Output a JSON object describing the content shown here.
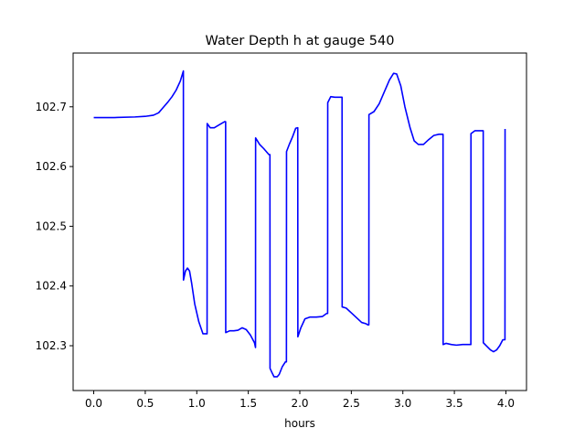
{
  "chart_data": {
    "type": "line",
    "title": "Water Depth h at gauge 540",
    "xlabel": "hours",
    "ylabel": "",
    "xlim": [
      -0.2,
      4.2
    ],
    "ylim": [
      102.225,
      102.79
    ],
    "x_ticks": [
      0.0,
      0.5,
      1.0,
      1.5,
      2.0,
      2.5,
      3.0,
      3.5,
      4.0
    ],
    "x_tick_labels": [
      "0.0",
      "0.5",
      "1.0",
      "1.5",
      "2.0",
      "2.5",
      "3.0",
      "3.5",
      "4.0"
    ],
    "y_ticks": [
      102.3,
      102.4,
      102.5,
      102.6,
      102.7
    ],
    "y_tick_labels": [
      "102.3",
      "102.4",
      "102.5",
      "102.6",
      "102.7"
    ],
    "grid": false,
    "legend": "none",
    "series": [
      {
        "color": "#0000ff",
        "x": [
          0.0,
          0.2,
          0.4,
          0.5,
          0.58,
          0.63,
          0.68,
          0.72,
          0.76,
          0.8,
          0.84,
          0.87,
          0.871,
          0.89,
          0.91,
          0.93,
          0.95,
          0.98,
          1.02,
          1.06,
          1.1,
          1.101,
          1.13,
          1.17,
          1.22,
          1.27,
          1.28,
          1.281,
          1.32,
          1.36,
          1.4,
          1.44,
          1.48,
          1.52,
          1.56,
          1.57,
          1.571,
          1.61,
          1.65,
          1.7,
          1.71,
          1.711,
          1.73,
          1.75,
          1.78,
          1.8,
          1.83,
          1.86,
          1.87,
          1.871,
          1.9,
          1.93,
          1.96,
          1.98,
          1.981,
          2.01,
          2.05,
          2.1,
          2.16,
          2.22,
          2.26,
          2.27,
          2.271,
          2.3,
          2.34,
          2.4,
          2.41,
          2.411,
          2.45,
          2.5,
          2.55,
          2.6,
          2.64,
          2.66,
          2.67,
          2.671,
          2.72,
          2.77,
          2.82,
          2.87,
          2.91,
          2.94,
          2.98,
          3.02,
          3.07,
          3.11,
          3.15,
          3.2,
          3.25,
          3.3,
          3.35,
          3.38,
          3.39,
          3.391,
          3.42,
          3.47,
          3.52,
          3.58,
          3.64,
          3.66,
          3.661,
          3.7,
          3.75,
          3.78,
          3.781,
          3.81,
          3.85,
          3.88,
          3.91,
          3.94,
          3.97,
          3.99,
          3.991,
          3.992
        ],
        "y": [
          102.682,
          102.682,
          102.683,
          102.684,
          102.686,
          102.69,
          102.7,
          102.708,
          102.717,
          102.728,
          102.743,
          102.76,
          102.41,
          102.425,
          102.43,
          102.425,
          102.405,
          102.37,
          102.34,
          102.32,
          102.32,
          102.672,
          102.665,
          102.665,
          102.67,
          102.675,
          102.675,
          102.322,
          102.325,
          102.325,
          102.326,
          102.33,
          102.327,
          102.318,
          102.305,
          102.297,
          102.648,
          102.637,
          102.63,
          102.62,
          102.62,
          102.262,
          102.255,
          102.248,
          102.248,
          102.252,
          102.265,
          102.273,
          102.273,
          102.625,
          102.638,
          102.65,
          102.664,
          102.665,
          102.315,
          102.33,
          102.345,
          102.348,
          102.348,
          102.349,
          102.354,
          102.354,
          102.707,
          102.717,
          102.716,
          102.716,
          102.716,
          102.365,
          102.363,
          102.355,
          102.347,
          102.339,
          102.337,
          102.335,
          102.335,
          102.687,
          102.692,
          102.705,
          102.725,
          102.745,
          102.756,
          102.755,
          102.735,
          102.7,
          102.665,
          102.643,
          102.637,
          102.637,
          102.645,
          102.652,
          102.654,
          102.654,
          102.654,
          102.302,
          102.304,
          102.302,
          102.301,
          102.302,
          102.302,
          102.302,
          102.655,
          102.66,
          102.66,
          102.66,
          102.305,
          102.3,
          102.293,
          102.29,
          102.293,
          102.3,
          102.31,
          102.31,
          102.31,
          102.663
        ]
      }
    ]
  }
}
